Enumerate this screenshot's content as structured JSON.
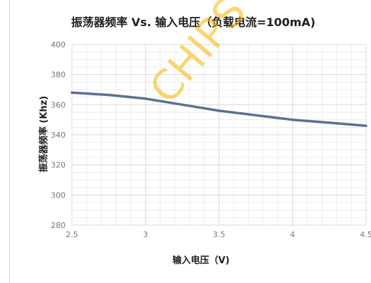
{
  "chart_data": {
    "type": "line",
    "title": "振荡器频率 Vs. 输入电压（负载电流=100mA)",
    "xlabel": "输入电压（V)",
    "ylabel": "振荡器频率 (Khz)",
    "xlim": [
      2.5,
      4.5
    ],
    "ylim": [
      280,
      400
    ],
    "xticks": [
      "2.5",
      "3",
      "3.5",
      "4",
      "4.5"
    ],
    "yticks": [
      "280",
      "300",
      "320",
      "340",
      "360",
      "380",
      "400"
    ],
    "grid": true,
    "series": [
      {
        "x": [
          2.5,
          2.75,
          3.0,
          3.25,
          3.5,
          3.75,
          4.0,
          4.25,
          4.5
        ],
        "y": [
          368,
          366.5,
          364,
          360,
          356,
          353,
          350,
          348,
          346
        ]
      }
    ],
    "colors": {
      "line": "#5d6f93",
      "grid": "#d9d9d9"
    },
    "watermark": "CHIPS"
  }
}
